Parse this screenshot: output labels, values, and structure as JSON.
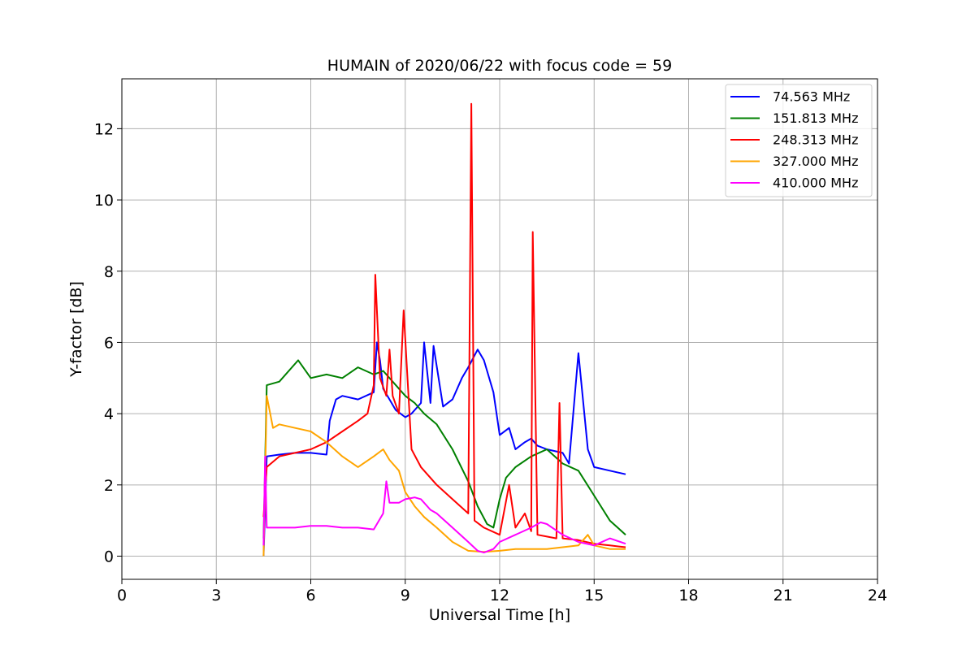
{
  "chart_data": {
    "type": "line",
    "title": "HUMAIN of 2020/06/22 with focus code = 59",
    "xlabel": "Universal Time [h]",
    "ylabel": "Y-factor [dB]",
    "xlim": [
      0,
      24
    ],
    "ylim": [
      -0.65,
      13.4
    ],
    "xticks": [
      0,
      3,
      6,
      9,
      12,
      15,
      18,
      21,
      24
    ],
    "yticks": [
      0,
      2,
      4,
      6,
      8,
      10,
      12
    ],
    "grid": true,
    "legend_position": "top-right",
    "series": [
      {
        "name": " 74.563 MHz",
        "color": "#0000ff",
        "x": [
          4.5,
          4.6,
          5.0,
          5.5,
          6.0,
          6.5,
          6.6,
          6.8,
          7.0,
          7.5,
          8.0,
          8.1,
          8.2,
          8.3,
          8.5,
          8.7,
          9.0,
          9.2,
          9.5,
          9.6,
          9.8,
          9.9,
          10.2,
          10.5,
          10.8,
          11.0,
          11.3,
          11.5,
          11.8,
          12.0,
          12.3,
          12.5,
          12.8,
          13.0,
          13.2,
          13.5,
          14.0,
          14.2,
          14.5,
          14.8,
          15.0,
          15.5,
          16.0
        ],
        "y": [
          0.0,
          2.8,
          2.85,
          2.9,
          2.9,
          2.85,
          3.8,
          4.4,
          4.5,
          4.4,
          4.6,
          6.0,
          5.5,
          4.7,
          4.4,
          4.1,
          3.9,
          4.0,
          4.3,
          6.0,
          4.3,
          5.9,
          4.2,
          4.4,
          5.0,
          5.3,
          5.8,
          5.5,
          4.6,
          3.4,
          3.6,
          3.0,
          3.2,
          3.3,
          3.1,
          3.0,
          2.9,
          2.6,
          5.7,
          3.0,
          2.5,
          2.4,
          2.3
        ]
      },
      {
        "name": "151.813 MHz",
        "color": "#008000",
        "x": [
          4.5,
          4.6,
          5.0,
          5.6,
          6.0,
          6.5,
          7.0,
          7.5,
          8.0,
          8.3,
          8.6,
          9.0,
          9.3,
          9.6,
          10.0,
          10.5,
          11.0,
          11.3,
          11.6,
          11.8,
          12.0,
          12.2,
          12.5,
          13.0,
          13.5,
          14.0,
          14.5,
          15.0,
          15.5,
          16.0
        ],
        "y": [
          0.5,
          4.8,
          4.9,
          5.5,
          5.0,
          5.1,
          5.0,
          5.3,
          5.1,
          5.2,
          4.9,
          4.5,
          4.3,
          4.0,
          3.7,
          3.0,
          2.1,
          1.4,
          0.9,
          0.8,
          1.6,
          2.2,
          2.5,
          2.8,
          3.0,
          2.6,
          2.4,
          1.7,
          1.0,
          0.6
        ]
      },
      {
        "name": "248.313 MHz",
        "color": "#ff0000",
        "x": [
          4.5,
          4.6,
          5.0,
          5.5,
          6.0,
          6.5,
          7.0,
          7.5,
          7.8,
          8.0,
          8.05,
          8.2,
          8.4,
          8.5,
          8.6,
          8.8,
          8.95,
          9.2,
          9.5,
          10.0,
          10.5,
          11.0,
          11.1,
          11.2,
          11.5,
          12.0,
          12.3,
          12.5,
          12.8,
          13.0,
          13.05,
          13.2,
          13.5,
          13.8,
          13.9,
          14.0,
          14.5,
          15.0,
          15.5,
          16.0
        ],
        "y": [
          1.1,
          2.5,
          2.8,
          2.9,
          3.0,
          3.2,
          3.5,
          3.8,
          4.0,
          4.8,
          7.9,
          5.0,
          4.5,
          5.8,
          4.5,
          4.0,
          6.9,
          3.0,
          2.5,
          2.0,
          1.6,
          1.2,
          12.7,
          1.0,
          0.8,
          0.6,
          2.0,
          0.8,
          1.2,
          0.7,
          9.1,
          0.6,
          0.55,
          0.5,
          4.3,
          0.5,
          0.45,
          0.35,
          0.3,
          0.25
        ]
      },
      {
        "name": "327.000 MHz",
        "color": "#ffa500",
        "x": [
          4.5,
          4.6,
          4.8,
          5.0,
          5.5,
          6.0,
          6.5,
          7.0,
          7.5,
          8.0,
          8.3,
          8.5,
          8.8,
          9.0,
          9.3,
          9.6,
          10.0,
          10.5,
          11.0,
          11.5,
          12.0,
          12.5,
          13.0,
          13.5,
          14.0,
          14.5,
          14.8,
          15.0,
          15.5,
          16.0
        ],
        "y": [
          0.0,
          4.5,
          3.6,
          3.7,
          3.6,
          3.5,
          3.2,
          2.8,
          2.5,
          2.8,
          3.0,
          2.7,
          2.4,
          1.8,
          1.4,
          1.1,
          0.8,
          0.4,
          0.15,
          0.12,
          0.15,
          0.2,
          0.2,
          0.2,
          0.25,
          0.3,
          0.6,
          0.3,
          0.2,
          0.2
        ]
      },
      {
        "name": "410.000 MHz",
        "color": "#ff00ff",
        "x": [
          4.5,
          4.55,
          4.6,
          5.0,
          5.5,
          6.0,
          6.5,
          7.0,
          7.5,
          8.0,
          8.3,
          8.4,
          8.5,
          8.8,
          9.0,
          9.3,
          9.5,
          9.8,
          10.0,
          10.5,
          11.0,
          11.3,
          11.5,
          11.8,
          12.0,
          12.5,
          13.0,
          13.3,
          13.5,
          14.0,
          14.5,
          15.0,
          15.5,
          16.0
        ],
        "y": [
          0.3,
          2.8,
          0.8,
          0.8,
          0.8,
          0.85,
          0.85,
          0.8,
          0.8,
          0.75,
          1.2,
          2.1,
          1.5,
          1.5,
          1.6,
          1.65,
          1.6,
          1.3,
          1.2,
          0.8,
          0.4,
          0.15,
          0.1,
          0.2,
          0.4,
          0.6,
          0.8,
          0.95,
          0.9,
          0.6,
          0.4,
          0.3,
          0.5,
          0.35
        ]
      }
    ]
  }
}
